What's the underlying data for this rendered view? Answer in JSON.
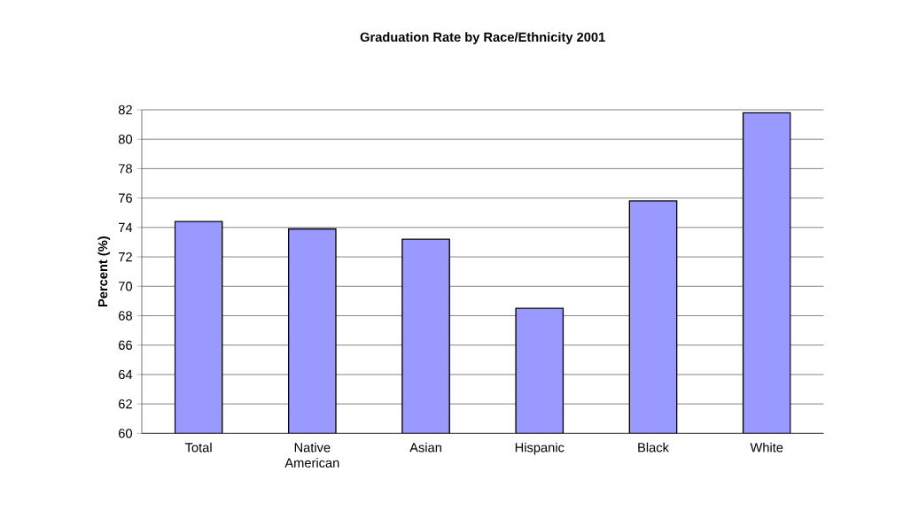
{
  "chart_data": {
    "type": "bar",
    "title": "Graduation Rate by Race/Ethnicity 2001",
    "ylabel": "Percent (%)",
    "categories": [
      "Total",
      "Native American",
      "Asian",
      "Hispanic",
      "Black",
      "White"
    ],
    "values": [
      74.4,
      73.9,
      73.2,
      68.5,
      75.8,
      81.8
    ],
    "color": "#9999ff",
    "ylim": [
      60,
      82
    ],
    "yticks": [
      60,
      62,
      64,
      66,
      68,
      70,
      72,
      74,
      76,
      78,
      80,
      82
    ],
    "grid": "y"
  }
}
